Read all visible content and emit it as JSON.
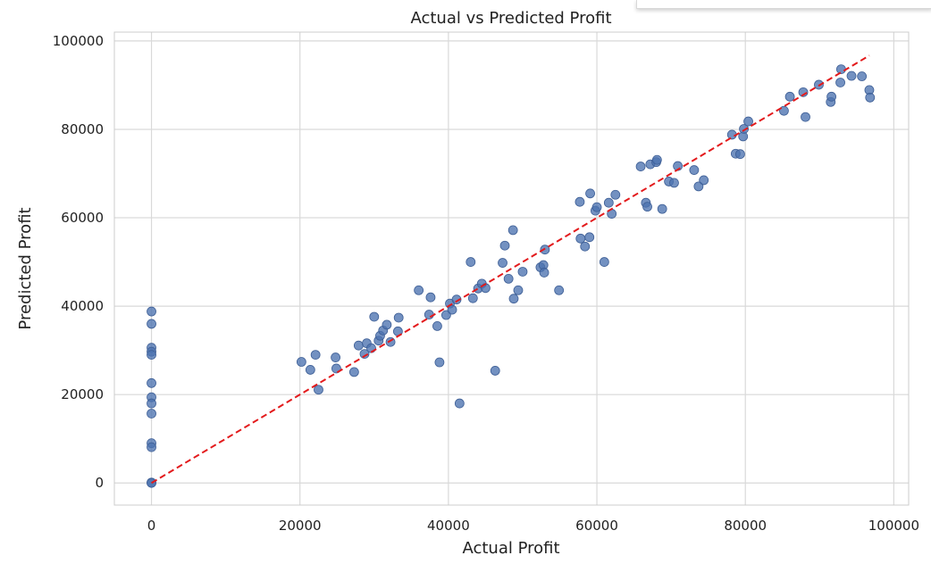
{
  "chart_data": {
    "type": "scatter",
    "title": "Actual vs Predicted Profit",
    "xlabel": "Actual Profit",
    "ylabel": "Predicted Profit",
    "xlim": [
      -5000,
      102000
    ],
    "ylim": [
      -5000,
      102000
    ],
    "xticks": [
      0,
      20000,
      40000,
      60000,
      80000,
      100000
    ],
    "yticks": [
      0,
      20000,
      40000,
      60000,
      80000,
      100000
    ],
    "grid": true,
    "colors": {
      "points": "#4c72b0",
      "reference_line": "#e31a1c",
      "grid": "#d9d9d9"
    },
    "reference_line": {
      "from": [
        0,
        0
      ],
      "to": [
        96700,
        96700
      ],
      "style": "dashed"
    },
    "points": [
      [
        0,
        38800
      ],
      [
        0,
        36000
      ],
      [
        0,
        30600
      ],
      [
        0,
        29700
      ],
      [
        0,
        29000
      ],
      [
        0,
        22600
      ],
      [
        0,
        19400
      ],
      [
        0,
        18000
      ],
      [
        0,
        15700
      ],
      [
        0,
        9000
      ],
      [
        0,
        8100
      ],
      [
        0,
        100
      ],
      [
        0,
        0
      ],
      [
        20200,
        27400
      ],
      [
        21400,
        25600
      ],
      [
        22100,
        29000
      ],
      [
        22500,
        21100
      ],
      [
        24800,
        28400
      ],
      [
        24900,
        25900
      ],
      [
        27300,
        25100
      ],
      [
        27900,
        31100
      ],
      [
        28700,
        29200
      ],
      [
        29000,
        31600
      ],
      [
        29600,
        30500
      ],
      [
        30000,
        37600
      ],
      [
        30600,
        32200
      ],
      [
        30800,
        33300
      ],
      [
        31200,
        34500
      ],
      [
        31700,
        35800
      ],
      [
        32200,
        31900
      ],
      [
        33200,
        34300
      ],
      [
        33300,
        37400
      ],
      [
        36000,
        43600
      ],
      [
        37400,
        38100
      ],
      [
        37600,
        42000
      ],
      [
        38500,
        35500
      ],
      [
        38800,
        27300
      ],
      [
        39700,
        38000
      ],
      [
        40200,
        40600
      ],
      [
        40500,
        39200
      ],
      [
        41100,
        41500
      ],
      [
        41500,
        18000
      ],
      [
        43000,
        50000
      ],
      [
        43300,
        41800
      ],
      [
        44000,
        44000
      ],
      [
        44500,
        45100
      ],
      [
        45000,
        44100
      ],
      [
        46300,
        25400
      ],
      [
        47300,
        49800
      ],
      [
        47600,
        53700
      ],
      [
        48100,
        46200
      ],
      [
        48700,
        57200
      ],
      [
        48800,
        41700
      ],
      [
        49400,
        43600
      ],
      [
        50000,
        47800
      ],
      [
        52400,
        48800
      ],
      [
        52800,
        49300
      ],
      [
        52900,
        47600
      ],
      [
        53000,
        52800
      ],
      [
        54900,
        43600
      ],
      [
        57700,
        63600
      ],
      [
        57800,
        55300
      ],
      [
        58400,
        53500
      ],
      [
        59000,
        55600
      ],
      [
        59100,
        65500
      ],
      [
        59800,
        61600
      ],
      [
        60000,
        62400
      ],
      [
        61000,
        50000
      ],
      [
        61600,
        63400
      ],
      [
        62000,
        60900
      ],
      [
        62500,
        65200
      ],
      [
        65900,
        71600
      ],
      [
        66600,
        63400
      ],
      [
        66800,
        62500
      ],
      [
        67200,
        72100
      ],
      [
        68000,
        72600
      ],
      [
        68100,
        73100
      ],
      [
        68800,
        62000
      ],
      [
        69700,
        68200
      ],
      [
        70400,
        67900
      ],
      [
        70900,
        71700
      ],
      [
        73100,
        70800
      ],
      [
        73700,
        67100
      ],
      [
        74400,
        68500
      ],
      [
        78200,
        78800
      ],
      [
        78700,
        74500
      ],
      [
        79300,
        74400
      ],
      [
        79700,
        78400
      ],
      [
        79800,
        80100
      ],
      [
        80400,
        81800
      ],
      [
        85200,
        84200
      ],
      [
        86000,
        87400
      ],
      [
        87800,
        88400
      ],
      [
        88100,
        82800
      ],
      [
        89900,
        90100
      ],
      [
        91500,
        86200
      ],
      [
        91600,
        87400
      ],
      [
        92800,
        90600
      ],
      [
        92900,
        93600
      ],
      [
        94300,
        92100
      ],
      [
        95700,
        92000
      ],
      [
        96700,
        88900
      ],
      [
        96800,
        87200
      ]
    ]
  }
}
